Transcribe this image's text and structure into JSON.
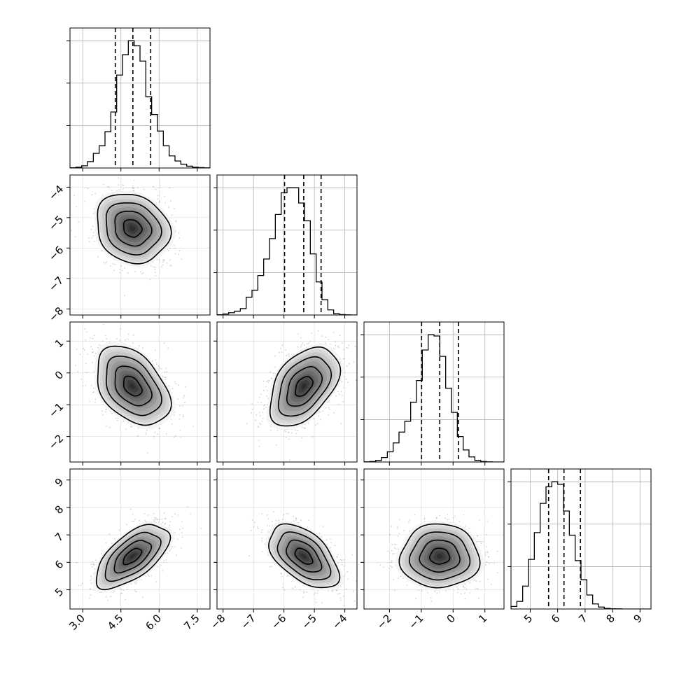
{
  "chart_data": {
    "type": "corner",
    "grid": true,
    "variables": [
      {
        "range": [
          2.5,
          8.0
        ],
        "ticks": [
          3.0,
          4.5,
          6.0,
          7.5
        ],
        "tick_labels": [
          "3.0",
          "4.5",
          "6.0",
          "7.5"
        ],
        "mean": 4.95,
        "sd": 0.72,
        "quantiles": [
          4.28,
          4.97,
          5.67
        ],
        "hist": {
          "start": 2.5,
          "end": 8.0,
          "bins": 24,
          "counts": [
            2,
            6,
            17,
            50,
            115,
            175,
            285,
            440,
            730,
            890,
            1000,
            960,
            840,
            560,
            420,
            290,
            175,
            95,
            55,
            30,
            14,
            6,
            3,
            1
          ]
        }
      },
      {
        "range": [
          -8.2,
          -3.6
        ],
        "ticks": [
          -8,
          -7,
          -6,
          -5,
          -4
        ],
        "tick_labels": [
          "−8",
          "−7",
          "−6",
          "−5",
          "−4"
        ],
        "mean": -5.35,
        "sd": 0.57,
        "quantiles": [
          -5.98,
          -5.35,
          -4.78
        ],
        "hist": {
          "start": -8.2,
          "end": -3.6,
          "bins": 24,
          "counts": [
            2,
            8,
            18,
            30,
            50,
            140,
            195,
            310,
            440,
            600,
            790,
            960,
            1000,
            1000,
            880,
            740,
            480,
            260,
            120,
            40,
            10,
            3,
            1,
            0
          ]
        }
      },
      {
        "range": [
          -2.8,
          1.6
        ],
        "ticks": [
          -2,
          -1,
          0,
          1
        ],
        "tick_labels": [
          "−2",
          "−1",
          "0",
          "1"
        ],
        "mean": -0.42,
        "sd": 0.62,
        "quantiles": [
          -0.99,
          -0.42,
          0.17
        ],
        "hist": {
          "start": -2.8,
          "end": 1.6,
          "bins": 24,
          "counts": [
            1,
            4,
            12,
            35,
            80,
            150,
            235,
            320,
            470,
            640,
            880,
            1000,
            990,
            830,
            580,
            390,
            200,
            95,
            40,
            12,
            4,
            1,
            0,
            0
          ]
        }
      },
      {
        "range": [
          4.3,
          9.4
        ],
        "ticks": [
          5,
          6,
          7,
          8,
          9
        ],
        "tick_labels": [
          "5",
          "6",
          "7",
          "8",
          "9"
        ],
        "mean": 6.22,
        "sd": 0.58,
        "quantiles": [
          5.67,
          6.23,
          6.83
        ],
        "hist": {
          "start": 4.3,
          "end": 9.4,
          "bins": 24,
          "counts": [
            20,
            60,
            180,
            390,
            600,
            830,
            960,
            1000,
            980,
            770,
            580,
            380,
            230,
            110,
            40,
            15,
            5,
            2,
            1,
            0,
            0,
            0,
            0,
            0
          ]
        }
      }
    ],
    "correlations": [
      {
        "pair": [
          0,
          1
        ],
        "rho": -0.15
      },
      {
        "pair": [
          0,
          2
        ],
        "rho": -0.4
      },
      {
        "pair": [
          1,
          2
        ],
        "rho": 0.45
      },
      {
        "pair": [
          0,
          3
        ],
        "rho": 0.62
      },
      {
        "pair": [
          1,
          3
        ],
        "rho": -0.52
      },
      {
        "pair": [
          2,
          3
        ],
        "rho": 0.0
      }
    ],
    "contour_levels_sigma": [
      0.5,
      1.0,
      1.5,
      2.0
    ],
    "colors": {
      "line": "#000000",
      "grid": "#b0b0b0",
      "scatter": "#9a9a9a",
      "frame": "#000000"
    }
  }
}
